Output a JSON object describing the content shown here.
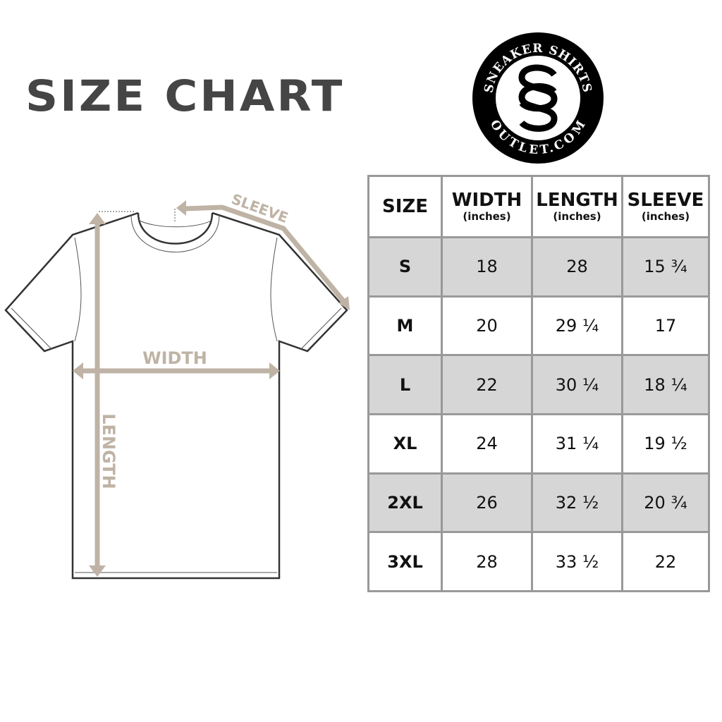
{
  "title": "SIZE CHART",
  "logo": {
    "text_top": "SNEAKER SHIRTS",
    "text_bottom": "OUTLET.COM",
    "monogram": "SS"
  },
  "diagram": {
    "width_label": "WIDTH",
    "length_label": "LENGTH",
    "sleeve_label": "SLEEVE",
    "accent_color": "#bfb3a5"
  },
  "table": {
    "headers": [
      {
        "label": "SIZE",
        "unit": ""
      },
      {
        "label": "WIDTH",
        "unit": "(inches)"
      },
      {
        "label": "LENGTH",
        "unit": "(inches)"
      },
      {
        "label": "SLEEVE",
        "unit": "(inches)"
      }
    ],
    "rows": [
      [
        "S",
        "18",
        "28",
        "15 ¾"
      ],
      [
        "M",
        "20",
        "29 ¼",
        "17"
      ],
      [
        "L",
        "22",
        "30 ¼",
        "18 ¼"
      ],
      [
        "XL",
        "24",
        "31 ¼",
        "19 ½"
      ],
      [
        "2XL",
        "26",
        "32 ½",
        "20 ¾"
      ],
      [
        "3XL",
        "28",
        "33 ½",
        "22"
      ]
    ]
  }
}
